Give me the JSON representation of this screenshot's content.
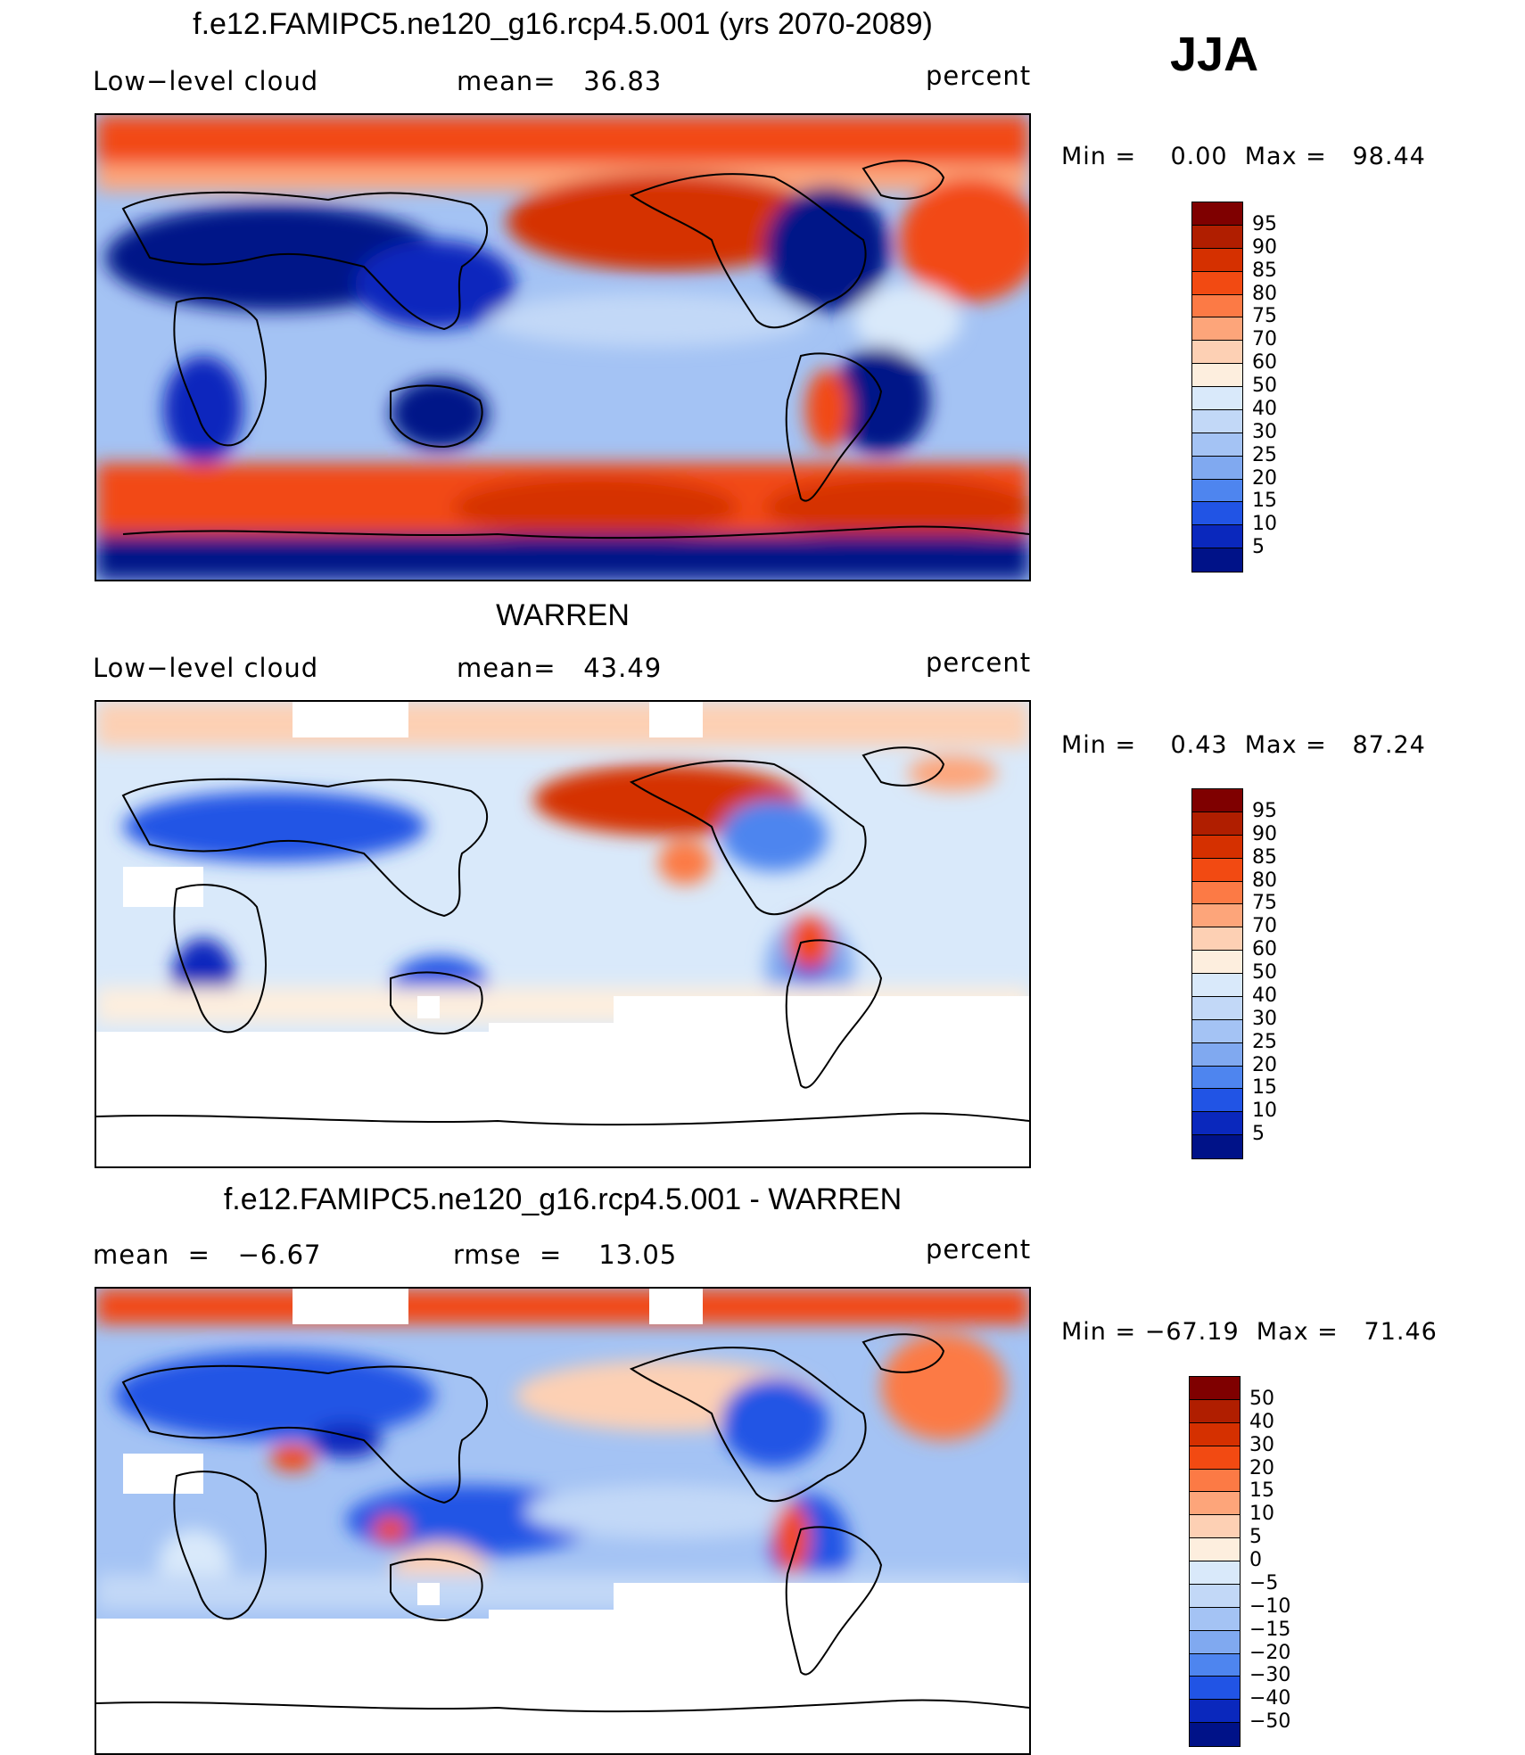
{
  "season": "JJA",
  "panels": [
    {
      "title": "f.e12.FAMIPC5.ne120_g16.rcp4.5.001 (yrs 2070-2089)",
      "left_label": "Low−level cloud",
      "center_label": "mean=   36.83",
      "units": "percent",
      "minmax": "Min =    0.00  Max =   98.44",
      "type": "model"
    },
    {
      "title": "WARREN",
      "left_label": "Low−level cloud",
      "center_label": "mean=   43.49",
      "units": "percent",
      "minmax": "Min =    0.43  Max =   87.24",
      "type": "obs"
    },
    {
      "title": "f.e12.FAMIPC5.ne120_g16.rcp4.5.001 - WARREN",
      "left_label": "mean  =   −6.67",
      "center_label": "rmse  =    13.05",
      "units": "percent",
      "minmax": "Min = −67.19  Max =   71.46",
      "type": "diff"
    }
  ],
  "colorbars": {
    "absolute": {
      "labels": [
        "95",
        "90",
        "85",
        "80",
        "75",
        "70",
        "60",
        "50",
        "40",
        "30",
        "25",
        "20",
        "15",
        "10",
        "5"
      ],
      "colors": [
        "#7f0000",
        "#b01e00",
        "#d53000",
        "#f24a12",
        "#fc7a45",
        "#fda57a",
        "#fdd0b4",
        "#fdeede",
        "#d9e9fa",
        "#c2d8f7",
        "#a4c3f4",
        "#80a9f0",
        "#4e85ef",
        "#2154e5",
        "#0a28bd",
        "#001288"
      ]
    },
    "difference": {
      "labels": [
        "50",
        "40",
        "30",
        "20",
        "15",
        "10",
        "5",
        "0",
        "−5",
        "−10",
        "−15",
        "−20",
        "−30",
        "−40",
        "−50"
      ],
      "colors": [
        "#7f0000",
        "#b01e00",
        "#d53000",
        "#f24a12",
        "#fc7a45",
        "#fda57a",
        "#fdd0b4",
        "#fdeede",
        "#d9e9fa",
        "#c2d8f7",
        "#a4c3f4",
        "#80a9f0",
        "#4e85ef",
        "#2154e5",
        "#0a28bd",
        "#001288"
      ]
    }
  }
}
